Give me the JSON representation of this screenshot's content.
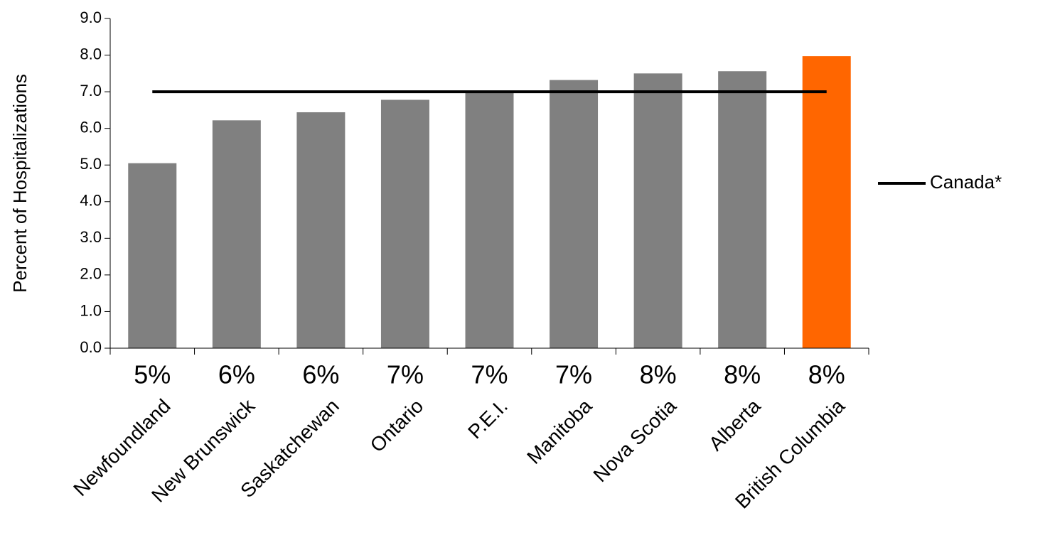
{
  "chart_data": {
    "type": "bar",
    "y_label": "Percent of Hospitalizations",
    "categories": [
      "Newfoundland",
      "New Brunswick",
      "Saskatchewan",
      "Ontario",
      "P.E.I.",
      "Manitoba",
      "Nova Scotia",
      "Alberta",
      "British Columbia"
    ],
    "values": [
      5.05,
      6.22,
      6.44,
      6.78,
      6.98,
      7.32,
      7.5,
      7.56,
      7.97
    ],
    "value_labels": [
      "5%",
      "6%",
      "6%",
      "7%",
      "7%",
      "7%",
      "8%",
      "8%",
      "8%"
    ],
    "colors": [
      "#808080",
      "#808080",
      "#808080",
      "#808080",
      "#808080",
      "#808080",
      "#808080",
      "#808080",
      "#ff6600"
    ],
    "reference_line": {
      "name": "Canada*",
      "value": 7.0,
      "color": "#000000"
    },
    "ylim": [
      0,
      9
    ],
    "yticks": [
      {
        "value": 0,
        "label": "0.0"
      },
      {
        "value": 1,
        "label": "1.0"
      },
      {
        "value": 2,
        "label": "2.0"
      },
      {
        "value": 3,
        "label": "3.0"
      },
      {
        "value": 4,
        "label": "4.0"
      },
      {
        "value": 5,
        "label": "5.0"
      },
      {
        "value": 6,
        "label": "6.0"
      },
      {
        "value": 7,
        "label": "7.0"
      },
      {
        "value": 8,
        "label": "8.0"
      },
      {
        "value": 9,
        "label": "9.0"
      }
    ],
    "legend": "right"
  }
}
